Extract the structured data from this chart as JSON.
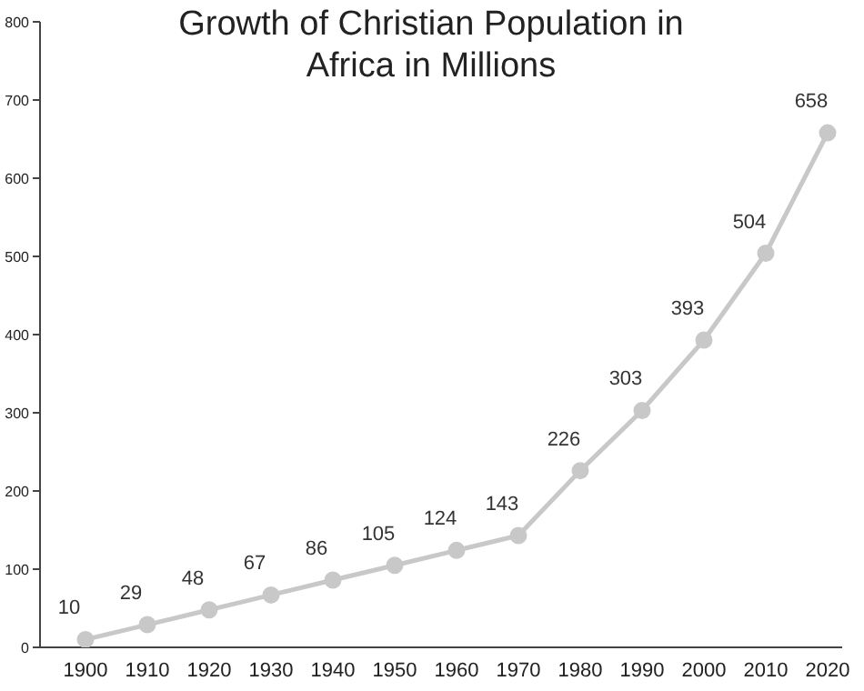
{
  "chart_data": {
    "type": "line",
    "title": "Growth of Christian Population in Africa in Millions",
    "categories": [
      "1900",
      "1910",
      "1920",
      "1930",
      "1940",
      "1950",
      "1960",
      "1970",
      "1980",
      "1990",
      "2000",
      "2010",
      "2020"
    ],
    "values": [
      10,
      29,
      48,
      67,
      86,
      105,
      124,
      143,
      226,
      303,
      393,
      504,
      658
    ],
    "color": "#c8c8c8",
    "marker": "circle",
    "line_style": "solid",
    "data_labels": true,
    "grid": false,
    "ylim": [
      0,
      800
    ],
    "yticks": [
      0,
      100,
      200,
      300,
      400,
      500,
      600,
      700,
      800
    ]
  }
}
